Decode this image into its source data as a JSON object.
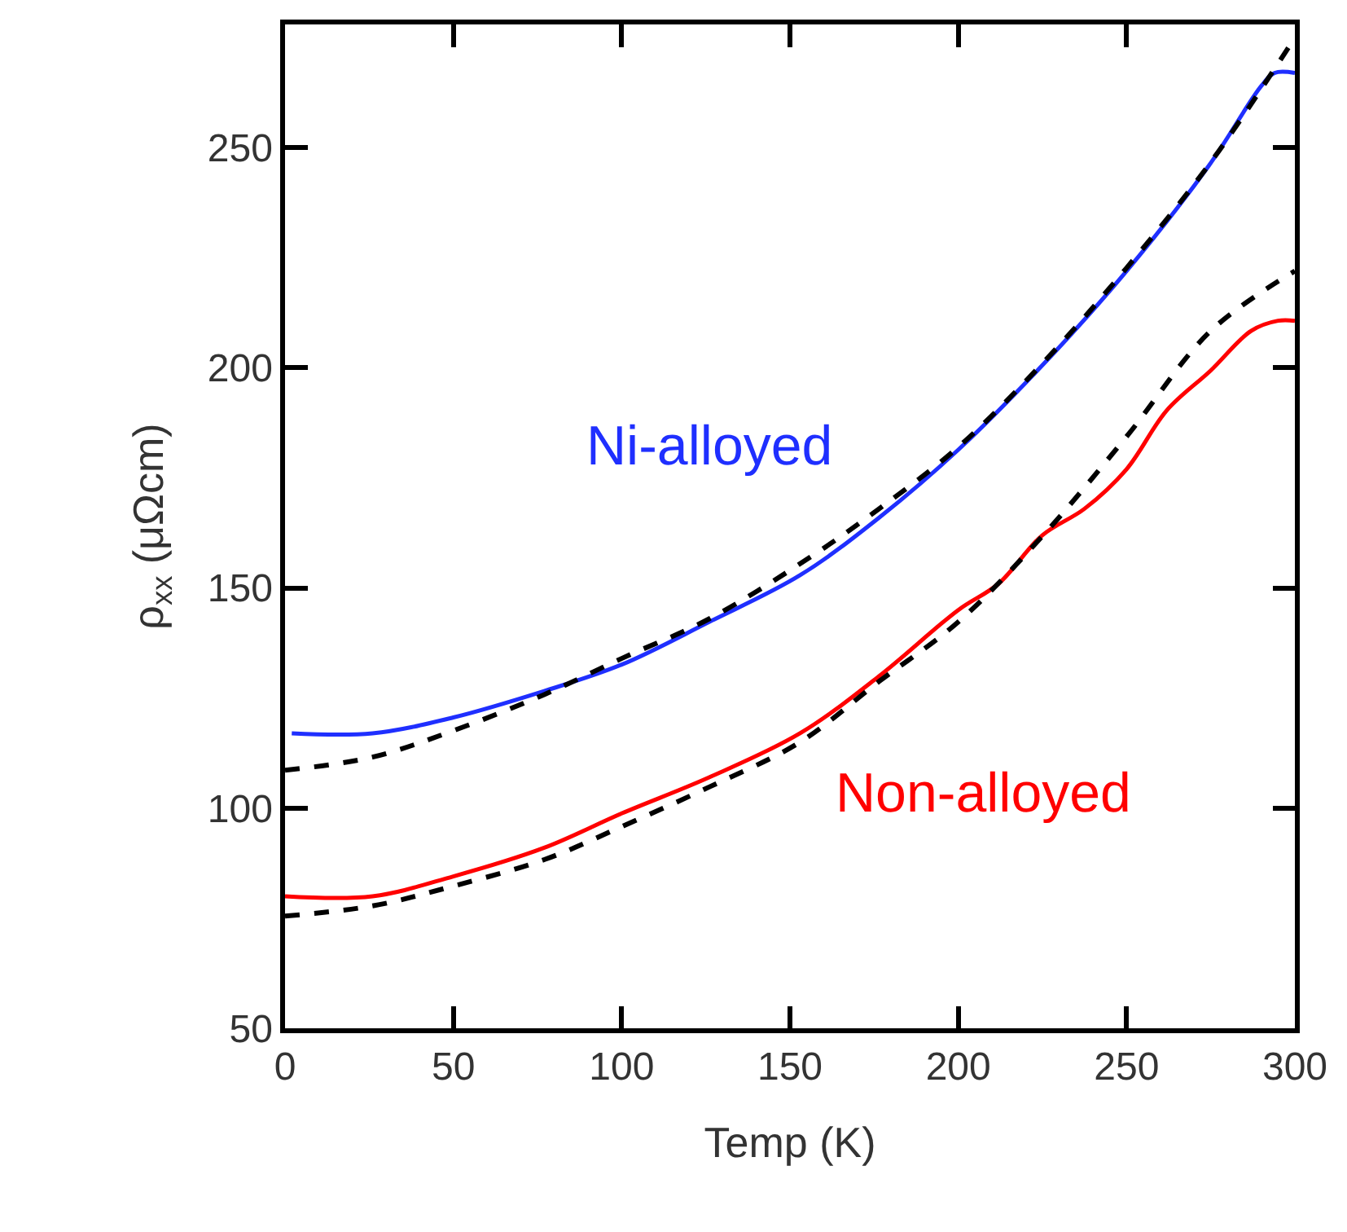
{
  "chart_data": {
    "type": "line",
    "xlabel": "Temp (K)",
    "ylabel": "ρ$_{xx}$ (μΩcm)",
    "xlim": [
      0,
      300
    ],
    "xticks": [
      0,
      50,
      100,
      150,
      200,
      250,
      300
    ],
    "ylim": [
      50,
      278
    ],
    "yticks": [
      50,
      100,
      150,
      200,
      250
    ],
    "legend": false,
    "marker": "none",
    "series": [
      {
        "name": "Ni-alloyed",
        "color": "#1f2fff",
        "line_style": "solid",
        "x": [
          2,
          26,
          50,
          77,
          100,
          126,
          153,
          176.5,
          200,
          225.5,
          250,
          274.5,
          290,
          294,
          300
        ],
        "values": [
          117,
          117,
          120.6,
          126.6,
          132.6,
          142.3,
          152.9,
          166,
          181.4,
          201,
          222,
          246,
          264,
          267,
          267
        ]
      },
      {
        "color": "#000000",
        "line_style": "dashed",
        "x": [
          0,
          26,
          50,
          77,
          100,
          126,
          156,
          176.5,
          200,
          225,
          250,
          275,
          300
        ],
        "values": [
          108.6,
          111.6,
          117.6,
          125.8,
          134,
          143,
          157,
          168,
          182,
          201,
          222.7,
          246.7,
          275
        ]
      },
      {
        "name": "Non-alloyed",
        "color": "#ff0000",
        "line_style": "solid",
        "x": [
          0,
          26,
          50,
          77,
          100,
          126,
          153,
          176.5,
          200,
          212,
          225,
          237.5,
          250,
          262,
          275,
          287,
          295,
          300
        ],
        "values": [
          80,
          80,
          84.5,
          91,
          98.8,
          107,
          117,
          130,
          145,
          151,
          162,
          168,
          177,
          190.4,
          199.4,
          208.4,
          210.7,
          210.7
        ]
      },
      {
        "color": "#000000",
        "line_style": "dashed",
        "x": [
          0,
          26,
          50,
          77,
          100,
          126,
          153,
          176.5,
          200,
          225,
          250,
          275,
          300
        ],
        "values": [
          75.5,
          77.8,
          82.3,
          88.3,
          95.8,
          104.8,
          115,
          128.8,
          142.3,
          161.8,
          184.4,
          208.4,
          222
        ]
      }
    ]
  }
}
